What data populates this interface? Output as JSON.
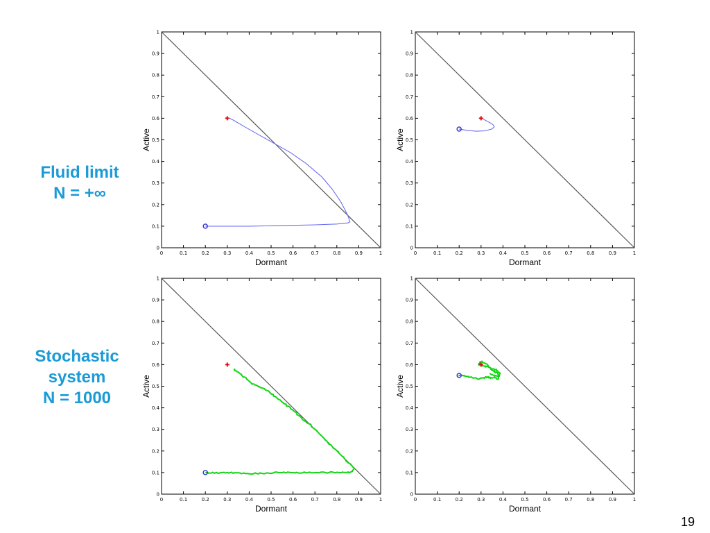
{
  "labels": {
    "fluid": [
      "Fluid limit",
      "N = +∞"
    ],
    "stochastic": [
      "Stochastic",
      "system",
      "N = 1000"
    ]
  },
  "page_number": "19",
  "colors": {
    "fluid": "#6a6ef0",
    "stochastic": "#12d512",
    "start": "#3a3ad8",
    "end": "#e01010",
    "diagonal": "#555555"
  },
  "chart_data": [
    {
      "type": "line",
      "xlabel": "Dormant",
      "ylabel": "Active",
      "xlim": [
        0,
        1
      ],
      "ylim": [
        0,
        1
      ],
      "xticks": [
        "0",
        "0.1",
        "0.2",
        "0.3",
        "0.4",
        "0.5",
        "0.6",
        "0.7",
        "0.8",
        "0.9",
        "1"
      ],
      "yticks": [
        "0",
        "0.1",
        "0.2",
        "0.3",
        "0.4",
        "0.5",
        "0.6",
        "0.7",
        "0.8",
        "0.9",
        "1"
      ],
      "diagonal": [
        [
          0,
          1
        ],
        [
          1,
          0
        ]
      ],
      "start": [
        0.2,
        0.1
      ],
      "end": [
        0.3,
        0.6
      ],
      "series": [
        {
          "color": "fluid",
          "x": [
            0.2,
            0.3,
            0.4,
            0.5,
            0.6,
            0.7,
            0.8,
            0.85,
            0.86,
            0.85,
            0.82,
            0.78,
            0.73,
            0.66,
            0.59,
            0.52,
            0.45,
            0.38,
            0.33,
            0.31
          ],
          "y": [
            0.1,
            0.1,
            0.1,
            0.102,
            0.104,
            0.106,
            0.11,
            0.115,
            0.12,
            0.15,
            0.21,
            0.27,
            0.33,
            0.39,
            0.44,
            0.48,
            0.52,
            0.56,
            0.59,
            0.6
          ]
        }
      ]
    },
    {
      "type": "line",
      "xlabel": "Dormant",
      "ylabel": "Active",
      "xlim": [
        0,
        1
      ],
      "ylim": [
        0,
        1
      ],
      "xticks": [
        "0",
        "0.1",
        "0.2",
        "0.3",
        "0.4",
        "0.5",
        "0.6",
        "0.7",
        "0.8",
        "0.9",
        "1"
      ],
      "yticks": [
        "0",
        "0.1",
        "0.2",
        "0.3",
        "0.4",
        "0.5",
        "0.6",
        "0.7",
        "0.8",
        "0.9",
        "1"
      ],
      "diagonal": [
        [
          0,
          1
        ],
        [
          1,
          0
        ]
      ],
      "start": [
        0.2,
        0.55
      ],
      "end": [
        0.3,
        0.6
      ],
      "series": [
        {
          "color": "fluid",
          "x": [
            0.2,
            0.24,
            0.28,
            0.32,
            0.35,
            0.36,
            0.355,
            0.34,
            0.32,
            0.305
          ],
          "y": [
            0.55,
            0.543,
            0.54,
            0.542,
            0.55,
            0.56,
            0.57,
            0.58,
            0.59,
            0.6
          ]
        }
      ]
    },
    {
      "type": "line",
      "xlabel": "Dormant",
      "ylabel": "Active",
      "xlim": [
        0,
        1
      ],
      "ylim": [
        0,
        1
      ],
      "xticks": [
        "0",
        "0.1",
        "0.2",
        "0.3",
        "0.4",
        "0.5",
        "0.6",
        "0.7",
        "0.8",
        "0.9",
        "1"
      ],
      "yticks": [
        "0",
        "0.1",
        "0.2",
        "0.3",
        "0.4",
        "0.5",
        "0.6",
        "0.7",
        "0.8",
        "0.9",
        "1"
      ],
      "diagonal": [
        [
          0,
          1
        ],
        [
          1,
          0
        ]
      ],
      "start": [
        0.2,
        0.1
      ],
      "end": [
        0.3,
        0.6
      ],
      "series": [
        {
          "color": "stochastic",
          "x": [
            0.2,
            0.25,
            0.3,
            0.35,
            0.4,
            0.45,
            0.5,
            0.55,
            0.6,
            0.65,
            0.7,
            0.75,
            0.8,
            0.84,
            0.87,
            0.88,
            0.86,
            0.83,
            0.8,
            0.76,
            0.72,
            0.68,
            0.64,
            0.6,
            0.56,
            0.52,
            0.48,
            0.44,
            0.4,
            0.37,
            0.34,
            0.33
          ],
          "y": [
            0.1,
            0.098,
            0.1,
            0.097,
            0.095,
            0.096,
            0.099,
            0.1,
            0.098,
            0.1,
            0.101,
            0.1,
            0.102,
            0.1,
            0.103,
            0.12,
            0.14,
            0.17,
            0.2,
            0.24,
            0.28,
            0.32,
            0.35,
            0.39,
            0.42,
            0.45,
            0.48,
            0.5,
            0.52,
            0.55,
            0.57,
            0.58
          ]
        }
      ]
    },
    {
      "type": "line",
      "xlabel": "Dormant",
      "ylabel": "Active",
      "xlim": [
        0,
        1
      ],
      "ylim": [
        0,
        1
      ],
      "xticks": [
        "0",
        "0.1",
        "0.2",
        "0.3",
        "0.4",
        "0.5",
        "0.6",
        "0.7",
        "0.8",
        "0.9",
        "1"
      ],
      "yticks": [
        "0",
        "0.1",
        "0.2",
        "0.3",
        "0.4",
        "0.5",
        "0.6",
        "0.7",
        "0.8",
        "0.9",
        "1"
      ],
      "diagonal": [
        [
          0,
          1
        ],
        [
          1,
          0
        ]
      ],
      "start": [
        0.2,
        0.55
      ],
      "end": [
        0.3,
        0.6
      ],
      "series": [
        {
          "color": "stochastic",
          "x": [
            0.2,
            0.23,
            0.26,
            0.29,
            0.31,
            0.33,
            0.34,
            0.36,
            0.38,
            0.375,
            0.36,
            0.35,
            0.33,
            0.31,
            0.3,
            0.29,
            0.31,
            0.33,
            0.35,
            0.37,
            0.385,
            0.38,
            0.36,
            0.34
          ],
          "y": [
            0.55,
            0.548,
            0.54,
            0.535,
            0.538,
            0.545,
            0.537,
            0.54,
            0.53,
            0.56,
            0.57,
            0.575,
            0.6,
            0.61,
            0.615,
            0.6,
            0.595,
            0.59,
            0.58,
            0.575,
            0.56,
            0.545,
            0.55,
            0.56
          ]
        }
      ]
    }
  ]
}
